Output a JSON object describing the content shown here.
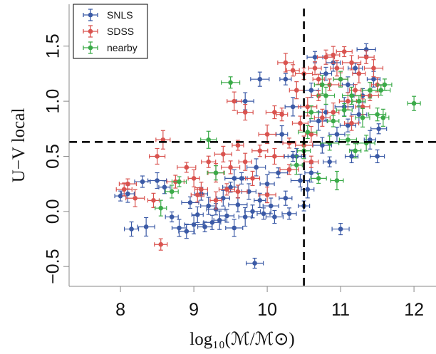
{
  "chart_data": {
    "type": "scatter",
    "xlabel": "log₁₀(ℳ/ℳ⊙)",
    "ylabel": "U−V local",
    "x_ticks": [
      "8",
      "9",
      "10",
      "11",
      "12"
    ],
    "y_ticks": [
      "−0.5",
      "0.0",
      "0.5",
      "1.0",
      "1.5"
    ],
    "xlim": [
      7.3,
      12.3
    ],
    "ylim": [
      -0.68,
      1.88
    ],
    "grid": false,
    "legend_position": "top-left",
    "reference_lines": {
      "vertical_x": 10.5,
      "horizontal_y": 0.63
    },
    "series": [
      {
        "name": "SNLS",
        "color": "#3b5aa6",
        "points": [
          [
            8.0,
            0.14
          ],
          [
            8.1,
            0.16
          ],
          [
            8.15,
            -0.16
          ],
          [
            8.3,
            0.27
          ],
          [
            8.35,
            -0.14
          ],
          [
            8.5,
            0.28
          ],
          [
            8.6,
            0.22
          ],
          [
            8.7,
            -0.05
          ],
          [
            8.8,
            -0.15
          ],
          [
            8.9,
            -0.18
          ],
          [
            8.95,
            0.08
          ],
          [
            9.0,
            -0.12
          ],
          [
            9.05,
            -0.03
          ],
          [
            9.1,
            0.16
          ],
          [
            9.15,
            -0.14
          ],
          [
            9.2,
            0.05
          ],
          [
            9.25,
            -0.1
          ],
          [
            9.3,
            0.02
          ],
          [
            9.35,
            -0.08
          ],
          [
            9.4,
            0.12
          ],
          [
            9.45,
            -0.04
          ],
          [
            9.5,
            0.22
          ],
          [
            9.55,
            -0.15
          ],
          [
            9.6,
            0.06
          ],
          [
            9.65,
            0.3
          ],
          [
            9.7,
            -0.05
          ],
          [
            9.75,
            0.18
          ],
          [
            9.8,
            0.0
          ],
          [
            9.83,
            -0.47
          ],
          [
            9.85,
            0.4
          ],
          [
            9.9,
            0.1
          ],
          [
            9.95,
            -0.02
          ],
          [
            10.0,
            0.25
          ],
          [
            10.05,
            0.05
          ],
          [
            10.1,
            -0.05
          ],
          [
            10.15,
            0.35
          ],
          [
            10.2,
            0.7
          ],
          [
            10.25,
            0.12
          ],
          [
            10.3,
            -0.02
          ],
          [
            10.35,
            0.95
          ],
          [
            10.4,
            0.5
          ],
          [
            10.45,
            0.28
          ],
          [
            10.5,
            0.05
          ],
          [
            10.55,
            0.2
          ],
          [
            10.6,
            1.1
          ],
          [
            10.65,
            1.4
          ],
          [
            10.7,
            0.82
          ],
          [
            10.75,
            0.6
          ],
          [
            10.8,
            1.25
          ],
          [
            10.85,
            0.45
          ],
          [
            10.9,
            1.35
          ],
          [
            10.95,
            0.7
          ],
          [
            11.0,
            -0.16
          ],
          [
            11.05,
            0.95
          ],
          [
            11.1,
            1.15
          ],
          [
            11.15,
            0.5
          ],
          [
            11.2,
            1.3
          ],
          [
            11.25,
            0.88
          ],
          [
            11.3,
            1.05
          ],
          [
            11.35,
            1.47
          ],
          [
            11.4,
            0.65
          ],
          [
            11.45,
            1.2
          ],
          [
            11.5,
            0.5
          ],
          [
            11.52,
            0.75
          ],
          [
            9.7,
            1.0
          ],
          [
            9.9,
            1.2
          ],
          [
            10.25,
            1.2
          ],
          [
            10.6,
            0.35
          ],
          [
            10.8,
            0.9
          ],
          [
            11.1,
            0.78
          ],
          [
            10.35,
            0.5
          ],
          [
            9.55,
            0.3
          ]
        ]
      },
      {
        "name": "SDSS",
        "color": "#d9534f",
        "points": [
          [
            8.05,
            0.2
          ],
          [
            8.1,
            0.25
          ],
          [
            8.2,
            0.12
          ],
          [
            8.45,
            0.1
          ],
          [
            8.55,
            -0.3
          ],
          [
            8.58,
            0.65
          ],
          [
            8.5,
            0.5
          ],
          [
            8.75,
            0.27
          ],
          [
            8.9,
            0.4
          ],
          [
            9.0,
            0.3
          ],
          [
            9.1,
            0.2
          ],
          [
            9.2,
            0.45
          ],
          [
            9.3,
            0.35
          ],
          [
            9.4,
            0.52
          ],
          [
            9.5,
            0.4
          ],
          [
            9.6,
            0.6
          ],
          [
            9.7,
            0.45
          ],
          [
            9.8,
            0.3
          ],
          [
            9.9,
            0.55
          ],
          [
            10.0,
            0.7
          ],
          [
            10.1,
            0.5
          ],
          [
            10.2,
            0.88
          ],
          [
            10.3,
            0.62
          ],
          [
            10.4,
            1.1
          ],
          [
            10.45,
            0.8
          ],
          [
            10.5,
            1.25
          ],
          [
            10.55,
            0.95
          ],
          [
            10.6,
            0.7
          ],
          [
            10.65,
            1.3
          ],
          [
            10.7,
            1.05
          ],
          [
            10.75,
            0.85
          ],
          [
            10.8,
            1.4
          ],
          [
            10.85,
            1.15
          ],
          [
            10.9,
            0.9
          ],
          [
            10.95,
            1.3
          ],
          [
            11.0,
            1.2
          ],
          [
            11.05,
            1.45
          ],
          [
            11.1,
            1.0
          ],
          [
            11.15,
            1.35
          ],
          [
            11.2,
            1.1
          ],
          [
            11.25,
            1.25
          ],
          [
            11.3,
            0.95
          ],
          [
            11.35,
            1.4
          ],
          [
            11.4,
            1.05
          ],
          [
            11.45,
            1.3
          ],
          [
            11.5,
            1.15
          ],
          [
            10.35,
            1.28
          ],
          [
            9.55,
            1.0
          ],
          [
            9.7,
            0.9
          ],
          [
            10.1,
            0.9
          ],
          [
            10.3,
            0.38
          ],
          [
            9.3,
            0.1
          ],
          [
            9.05,
            0.15
          ],
          [
            10.6,
            0.45
          ],
          [
            10.25,
            1.35
          ],
          [
            10.0,
            0.15
          ],
          [
            9.6,
            0.18
          ],
          [
            10.7,
            1.2
          ],
          [
            10.9,
            1.42
          ],
          [
            11.15,
            0.8
          ],
          [
            9.45,
            0.2
          ],
          [
            10.5,
            0.6
          ]
        ]
      },
      {
        "name": "nearby",
        "color": "#3aaa48",
        "points": [
          [
            8.55,
            0.03
          ],
          [
            8.7,
            0.18
          ],
          [
            8.8,
            0.27
          ],
          [
            9.2,
            0.65
          ],
          [
            9.3,
            0.35
          ],
          [
            9.5,
            1.17
          ],
          [
            10.4,
            0.42
          ],
          [
            10.5,
            0.55
          ],
          [
            10.6,
            0.9
          ],
          [
            10.7,
            0.3
          ],
          [
            10.8,
            1.05
          ],
          [
            10.85,
            0.62
          ],
          [
            10.9,
            0.82
          ],
          [
            10.95,
            0.28
          ],
          [
            11.0,
            1.2
          ],
          [
            11.05,
            0.92
          ],
          [
            11.1,
            0.65
          ],
          [
            11.15,
            1.05
          ],
          [
            11.2,
            0.55
          ],
          [
            11.25,
            1.0
          ],
          [
            11.3,
            0.85
          ],
          [
            11.4,
            1.1
          ],
          [
            11.5,
            0.88
          ],
          [
            11.55,
            1.1
          ],
          [
            11.58,
            0.85
          ],
          [
            12.0,
            0.98
          ],
          [
            11.6,
            1.15
          ],
          [
            10.75,
            1.15
          ],
          [
            11.35,
            0.62
          ],
          [
            10.55,
            0.72
          ]
        ]
      }
    ]
  }
}
